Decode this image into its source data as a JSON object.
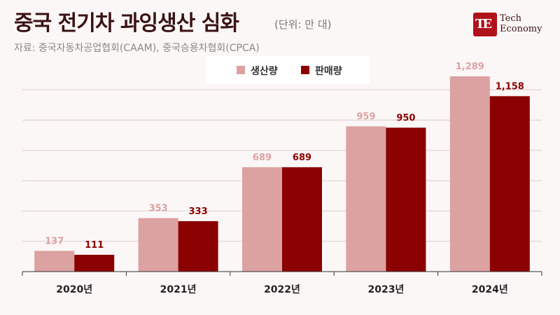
{
  "header": {
    "title": "중국 전기차 과잉생산 심화",
    "unit": "(단위: 만 대)",
    "source": "자료: 중국자동차공업협회(CAAM), 중국승용차협회(CPCA)"
  },
  "logo": {
    "mark": "TE",
    "line1": "Tech",
    "line2": "Economy",
    "color": "#b0121b"
  },
  "chart_data": {
    "type": "bar",
    "title": "중국 전기차 과잉생산 심화",
    "unit": "만 대",
    "categories": [
      "2020년",
      "2021년",
      "2022년",
      "2023년",
      "2024년"
    ],
    "series": [
      {
        "name": "생산량",
        "values": [
          137,
          353,
          689,
          959,
          1289
        ],
        "labels": [
          "137",
          "353",
          "689",
          "959",
          "1,289"
        ],
        "color": "#dca1a1"
      },
      {
        "name": "판매량",
        "values": [
          111,
          333,
          689,
          950,
          1158
        ],
        "labels": [
          "111",
          "333",
          "689",
          "950",
          "1,158"
        ],
        "color": "#8b0000"
      }
    ],
    "ylim": [
      0,
      1400
    ],
    "grid": true,
    "legend": "top-center"
  }
}
